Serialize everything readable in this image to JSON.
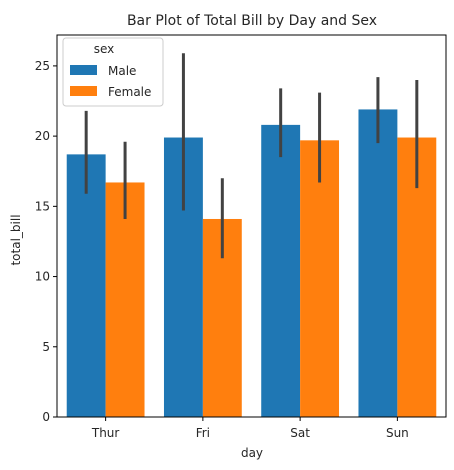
{
  "chart_data": {
    "type": "bar",
    "title": "Bar Plot of Total Bill by Day and Sex",
    "xlabel": "day",
    "ylabel": "total_bill",
    "categories": [
      "Thur",
      "Fri",
      "Sat",
      "Sun"
    ],
    "ylim": [
      0,
      27.2
    ],
    "yticks": [
      0,
      5,
      10,
      15,
      20,
      25
    ],
    "grid": false,
    "legend": {
      "title": "sex",
      "placement": "top-left"
    },
    "series": [
      {
        "name": "Male",
        "color": "#1f77b4",
        "values": [
          18.7,
          19.9,
          20.8,
          21.9
        ],
        "ci_low": [
          15.9,
          14.7,
          18.5,
          19.5
        ],
        "ci_high": [
          21.8,
          25.9,
          23.4,
          24.2
        ]
      },
      {
        "name": "Female",
        "color": "#ff7f0e",
        "values": [
          16.7,
          14.1,
          19.7,
          19.9
        ],
        "ci_low": [
          14.1,
          11.3,
          16.7,
          16.3
        ],
        "ci_high": [
          19.6,
          17.0,
          23.1,
          24.0
        ]
      }
    ]
  }
}
